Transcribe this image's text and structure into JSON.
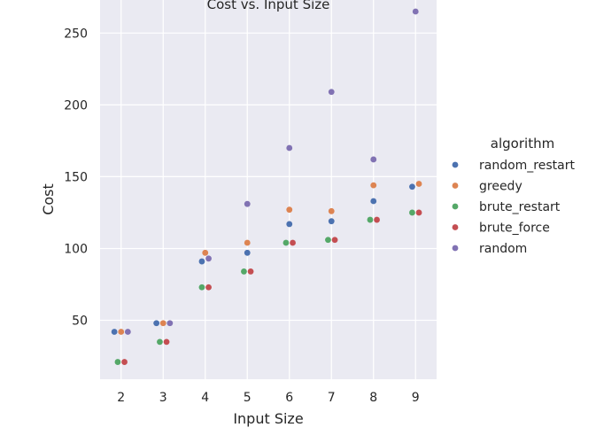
{
  "chart_data": {
    "type": "scatter",
    "title": "Cost vs. Input Size",
    "xlabel": "Input Size",
    "ylabel": "Cost",
    "categories": [
      "2",
      "3",
      "4",
      "5",
      "6",
      "7",
      "8",
      "9"
    ],
    "yticks": [
      50,
      100,
      150,
      200,
      250
    ],
    "ylim": [
      9,
      273
    ],
    "grid": true,
    "legend": {
      "title": "algorithm",
      "placement": "right"
    },
    "series": [
      {
        "name": "random_restart",
        "color": "#4c72b0",
        "values": [
          42,
          48,
          91,
          97,
          117,
          119,
          133,
          143
        ]
      },
      {
        "name": "greedy",
        "color": "#dd8452",
        "values": [
          42,
          48,
          97,
          104,
          127,
          126,
          144,
          145
        ]
      },
      {
        "name": "brute_restart",
        "color": "#55a868",
        "values": [
          21,
          35,
          73,
          84,
          104,
          106,
          120,
          125
        ]
      },
      {
        "name": "brute_force",
        "color": "#c44e52",
        "values": [
          21,
          35,
          73,
          84,
          104,
          106,
          120,
          125
        ]
      },
      {
        "name": "random",
        "color": "#8172b3",
        "values": [
          42,
          48,
          93,
          131,
          170,
          209,
          162,
          265
        ]
      }
    ]
  }
}
